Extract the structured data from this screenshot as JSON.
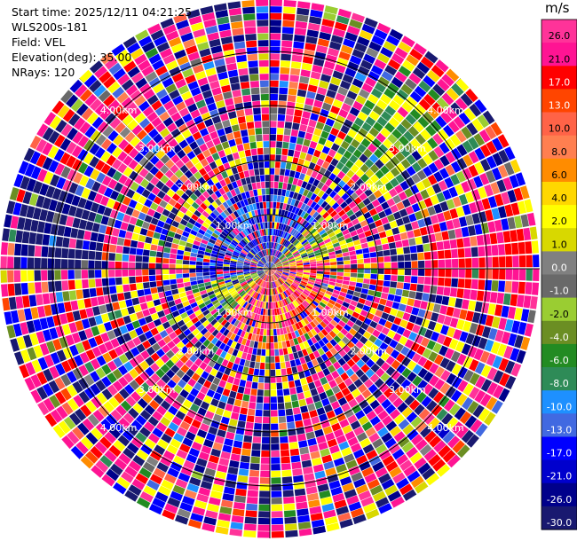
{
  "header": {
    "start_time": "Start time: 2025/12/11 04:21:25",
    "instrument": "WLS200s-181",
    "field": "Field: VEL",
    "elevation": "Elevation(deg): 35.00",
    "nrays": "NRays: 120"
  },
  "chart_data": {
    "type": "ppi",
    "field": "VEL",
    "units": "m/s",
    "n_rays": 120,
    "elevation_deg": 35.0,
    "range_rings": [
      {
        "label": "1.00km"
      },
      {
        "label": "2.00km"
      },
      {
        "label": "3.00km"
      },
      {
        "label": "4.00km"
      }
    ],
    "colorbar": {
      "ticks": [
        "26.0",
        "21.0",
        "17.0",
        "13.0",
        "10.0",
        "8.0",
        "6.0",
        "4.0",
        "2.0",
        "1.0",
        "0.0",
        "-1.0",
        "-2.0",
        "-4.0",
        "-6.0",
        "-8.0",
        "-10.0",
        "-13.0",
        "-17.0",
        "-21.0",
        "-26.0",
        "-30.0"
      ],
      "colors": [
        "#ff3399",
        "#ff1493",
        "#ff0000",
        "#ff4500",
        "#ff6347",
        "#ff7f50",
        "#ff8c00",
        "#ffd700",
        "#ffff00",
        "#d8d800",
        "#808080",
        "#696969",
        "#9acd32",
        "#6b8e23",
        "#228b22",
        "#2e8b57",
        "#1e90ff",
        "#4169e1",
        "#0000ff",
        "#0000cd",
        "#00008b",
        "#191970"
      ]
    },
    "notable_patches": [
      {
        "azimuth_deg": 90,
        "color": "#ff0000",
        "note": "red/pink band east"
      },
      {
        "azimuth_deg": 45,
        "color": "#228b22",
        "note": "green/yellow band northeast"
      },
      {
        "azimuth_deg": 280,
        "color": "#191970",
        "note": "navy band west"
      }
    ]
  }
}
